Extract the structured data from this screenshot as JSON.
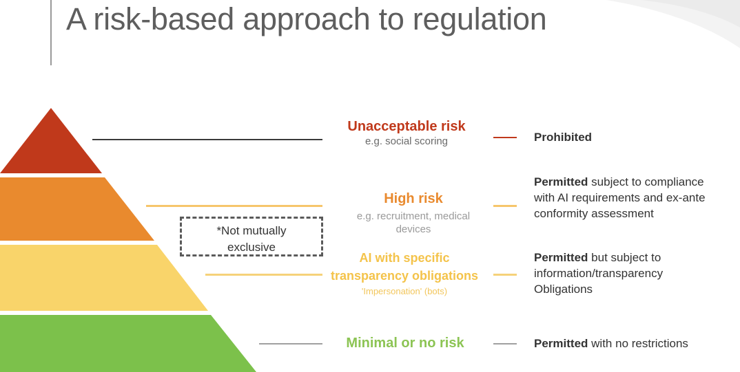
{
  "slide": {
    "title": "A risk-based approach to regulation"
  },
  "note": {
    "text": "*Not mutually\nexclusive"
  },
  "tiers": [
    {
      "name": "Unacceptable risk",
      "example": "e.g. social scoring",
      "color": "#c0391b",
      "line_color": "#3a3a3a",
      "verdict_bold": "Prohibited",
      "verdict_lines": []
    },
    {
      "name": "High risk",
      "example": "e.g. recruitment, medical\ndevices",
      "color": "#e98a2e",
      "line_color": "#f6c66b",
      "verdict_bold": "Permitted",
      "verdict_lines": [
        "subject to compliance",
        "with AI requirements and ex-ante",
        "conformity assessment"
      ]
    },
    {
      "name": "AI with specific\ntransparency obligations",
      "example": "'Impersonation' (bots)",
      "color": "#f9d46a",
      "line_color": "#f6d27a",
      "verdict_bold": "Permitted",
      "verdict_lines": [
        "but subject to",
        "information/transparency",
        "Obligations"
      ]
    },
    {
      "name": "Minimal or no risk",
      "example": "",
      "color": "#7cc14b",
      "line_color": "#a0a0a0",
      "verdict_bold": "Permitted",
      "verdict_lines": [
        "with no restrictions"
      ]
    }
  ],
  "colors": {
    "unacceptable_text": "#c0391b",
    "high_text": "#e98a2e",
    "transparency_text": "#f4c34a",
    "minimal_text": "#8cc454",
    "line_orange": "#c0391b"
  }
}
